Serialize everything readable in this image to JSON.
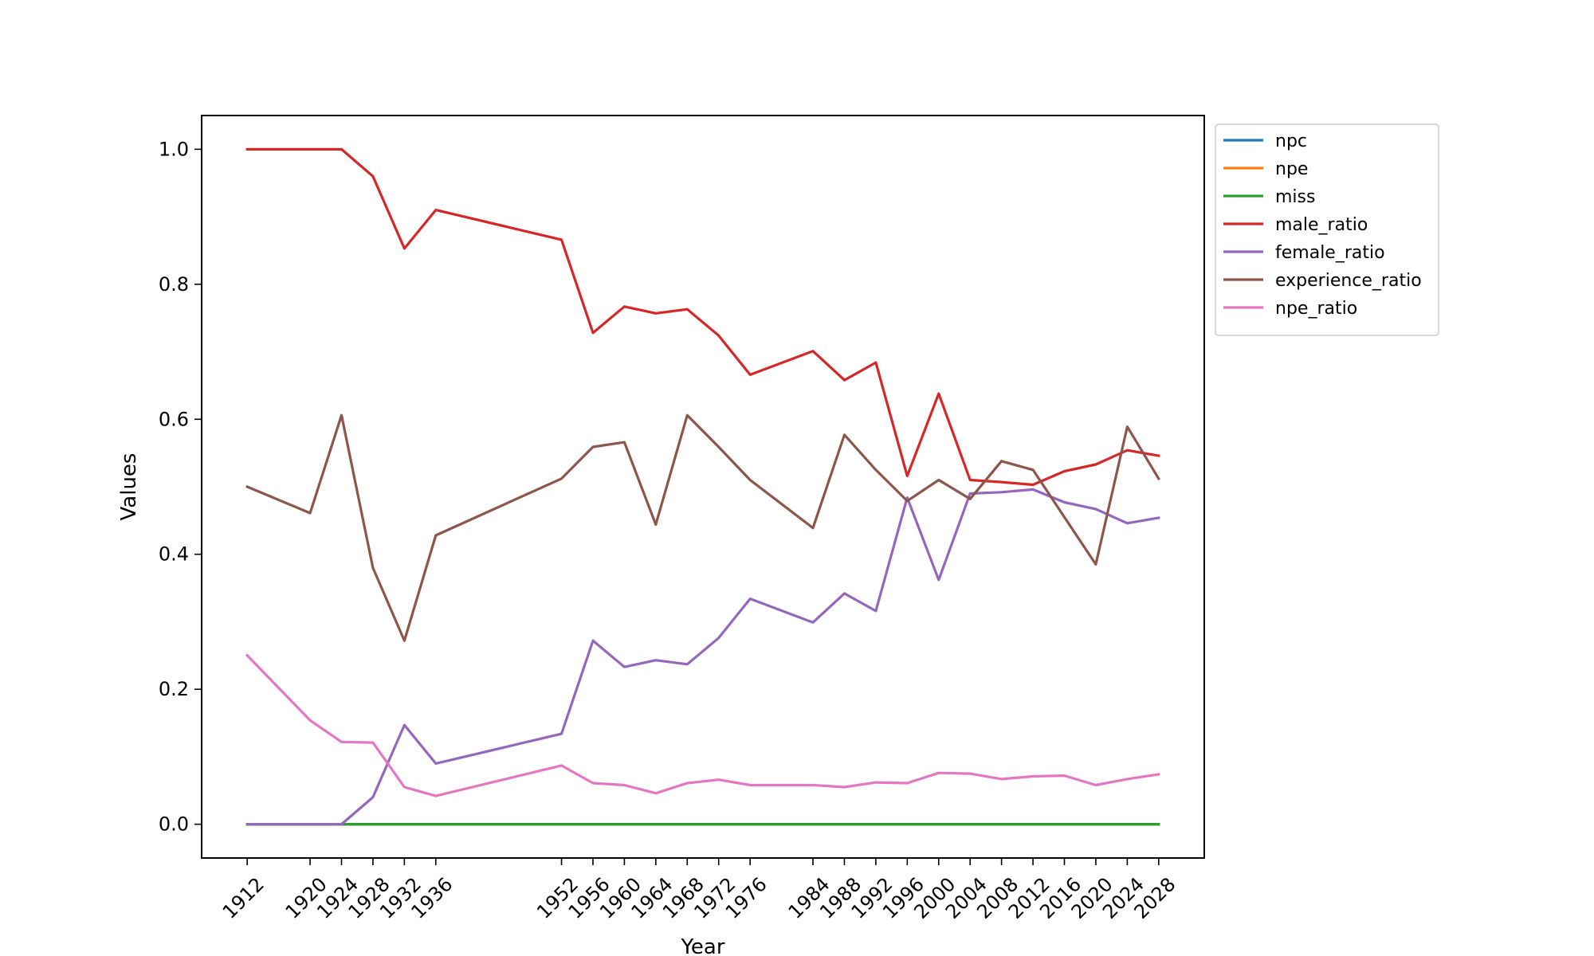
{
  "chart_data": {
    "type": "line",
    "title": "",
    "xlabel": "Year",
    "ylabel": "Values",
    "x_ticks": [
      1912,
      1920,
      1924,
      1928,
      1932,
      1936,
      1952,
      1956,
      1960,
      1964,
      1968,
      1972,
      1976,
      1984,
      1988,
      1992,
      1996,
      2000,
      2004,
      2008,
      2012,
      2016,
      2020,
      2024,
      2028
    ],
    "y_ticks": [
      0.0,
      0.2,
      0.4,
      0.6,
      0.8,
      1.0
    ],
    "y_tick_labels": [
      "0.0",
      "0.2",
      "0.4",
      "0.6",
      "0.8",
      "1.0"
    ],
    "xlim": [
      1906.2,
      2033.8
    ],
    "ylim": [
      -0.05,
      1.05
    ],
    "grid": false,
    "legend_position": "outside-right-top",
    "x": [
      1912,
      1920,
      1924,
      1928,
      1932,
      1936,
      1952,
      1956,
      1960,
      1964,
      1968,
      1972,
      1976,
      1984,
      1988,
      1992,
      1996,
      2000,
      2004,
      2008,
      2012,
      2016,
      2020,
      2024,
      2028
    ],
    "series": [
      {
        "name": "npc",
        "color": "#1f77b4",
        "values": [
          0,
          0,
          0,
          0,
          0,
          0,
          0,
          0,
          0,
          0,
          0,
          0,
          0,
          0,
          0,
          0,
          0,
          0,
          0,
          0,
          0,
          0,
          0,
          0,
          0
        ]
      },
      {
        "name": "npe",
        "color": "#ff7f0e",
        "values": [
          0,
          0,
          0,
          0,
          0,
          0,
          0,
          0,
          0,
          0,
          0,
          0,
          0,
          0,
          0,
          0,
          0,
          0,
          0,
          0,
          0,
          0,
          0,
          0,
          0
        ]
      },
      {
        "name": "miss",
        "color": "#2ca02c",
        "values": [
          0,
          0,
          0,
          0,
          0,
          0,
          0,
          0,
          0,
          0,
          0,
          0,
          0,
          0,
          0,
          0,
          0,
          0,
          0,
          0,
          0,
          0,
          0,
          0,
          0
        ]
      },
      {
        "name": "male_ratio",
        "color": "#d62728",
        "values": [
          1.0,
          1.0,
          1.0,
          0.96,
          0.853,
          0.91,
          0.866,
          0.728,
          0.767,
          0.757,
          0.763,
          0.724,
          0.666,
          0.701,
          0.658,
          0.684,
          0.516,
          0.638,
          0.51,
          0.507,
          0.503,
          0.523,
          0.533,
          0.554,
          0.546
        ]
      },
      {
        "name": "female_ratio",
        "color": "#9467bd",
        "values": [
          0.0,
          0.0,
          0.0,
          0.04,
          0.147,
          0.09,
          0.134,
          0.272,
          0.233,
          0.243,
          0.237,
          0.276,
          0.334,
          0.299,
          0.342,
          0.316,
          0.484,
          0.362,
          0.49,
          0.492,
          0.496,
          0.477,
          0.467,
          0.446,
          0.454
        ]
      },
      {
        "name": "experience_ratio",
        "color": "#8c564b",
        "values": [
          0.5,
          0.461,
          0.606,
          0.38,
          0.272,
          0.428,
          0.512,
          0.559,
          0.566,
          0.444,
          0.606,
          0.559,
          0.51,
          0.439,
          0.577,
          0.525,
          0.479,
          0.51,
          0.482,
          0.538,
          0.525,
          0.455,
          0.385,
          0.589,
          0.512
        ]
      },
      {
        "name": "npe_ratio",
        "color": "#e377c2",
        "values": [
          0.25,
          0.154,
          0.122,
          0.121,
          0.055,
          0.042,
          0.087,
          0.061,
          0.058,
          0.046,
          0.061,
          0.066,
          0.058,
          0.058,
          0.055,
          0.062,
          0.061,
          0.076,
          0.075,
          0.067,
          0.071,
          0.072,
          0.058,
          0.067,
          0.074
        ]
      }
    ]
  }
}
